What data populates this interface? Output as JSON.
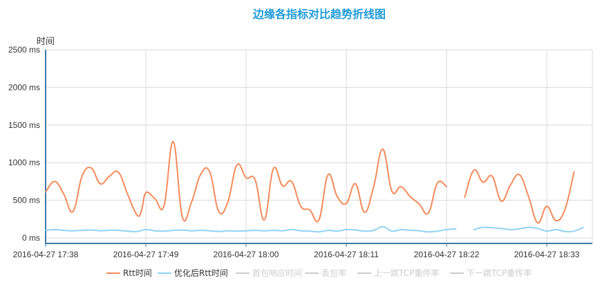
{
  "chart_data": {
    "type": "line",
    "title": "边缘各指标对比趋势折线图",
    "ylabel": "时间",
    "ylim": [
      0,
      2500
    ],
    "y_ticks": [
      {
        "value": 0,
        "label": "0 ms"
      },
      {
        "value": 500,
        "label": "500 ms"
      },
      {
        "value": 1000,
        "label": "1000 ms"
      },
      {
        "value": 1500,
        "label": "1500 ms"
      },
      {
        "value": 2000,
        "label": "2000 ms"
      },
      {
        "value": 2500,
        "label": "2500 ms"
      }
    ],
    "x_range": [
      "2016-04-27 17:38",
      "2016-04-27 18:38"
    ],
    "x_ticks": [
      "2016-04-27 17:38",
      "2016-04-27 17:49",
      "2016-04-27 18:00",
      "2016-04-27 18:11",
      "2016-04-27 18:22",
      "2016-04-27 18:33"
    ],
    "grid": true,
    "legend_position": "bottom-center",
    "colors": {
      "title": "#1e9bd7",
      "axis": "#3a7ca5",
      "grid": "#d9d9d9",
      "rtt": "#f58a5a",
      "optimized": "#8fd3f4",
      "inactive": "#cccccc"
    },
    "legend": [
      {
        "name": "Rtt时间",
        "active": true,
        "color": "#f58a5a"
      },
      {
        "name": "优化后Rtt时间",
        "active": true,
        "color": "#8fd3f4"
      },
      {
        "name": "首包响应时间",
        "active": false,
        "color": "#cccccc"
      },
      {
        "name": "丢包率",
        "active": false,
        "color": "#cccccc"
      },
      {
        "name": "上一跳TCP重传率",
        "active": false,
        "color": "#cccccc"
      },
      {
        "name": "下一跳TCP重传率",
        "active": false,
        "color": "#cccccc"
      }
    ],
    "series": [
      {
        "name": "Rtt时间",
        "x": [
          "17:38:00",
          "17:39:00",
          "17:40:00",
          "17:41:00",
          "17:42:00",
          "17:43:00",
          "17:44:00",
          "17:45:00",
          "17:46:00",
          "17:47:00",
          "17:48:00",
          "17:48:30",
          "17:49:00",
          "17:50:00",
          "17:51:00",
          "17:52:00",
          "17:53:00",
          "17:54:00",
          "17:55:00",
          "17:56:00",
          "17:57:00",
          "17:58:00",
          "17:59:00",
          "18:00:00",
          "18:01:00",
          "18:02:00",
          "18:03:00",
          "18:04:00",
          "18:05:00",
          "18:06:00",
          "18:07:00",
          "18:08:00",
          "18:09:00",
          "18:10:00",
          "18:11:00",
          "18:12:00",
          "18:13:00",
          "18:14:00",
          "18:15:00",
          "18:16:00",
          "18:17:00",
          "18:18:00",
          "18:19:00",
          "18:20:00",
          "18:21:00",
          "18:22:00",
          "18:23:00",
          "18:24:00",
          "18:25:00",
          "18:26:00",
          "18:27:00",
          "18:28:00",
          "18:29:00",
          "18:30:00",
          "18:31:00",
          "18:32:00",
          "18:33:00",
          "18:34:00",
          "18:35:00",
          "18:36:00",
          "18:37:00",
          "18:38:00"
        ],
        "values": [
          610,
          750,
          580,
          350,
          820,
          930,
          720,
          820,
          870,
          580,
          310,
          350,
          600,
          520,
          430,
          1280,
          280,
          470,
          840,
          880,
          350,
          480,
          970,
          800,
          770,
          240,
          920,
          690,
          750,
          420,
          370,
          240,
          840,
          550,
          460,
          720,
          340,
          680,
          1180,
          620,
          680,
          550,
          450,
          330,
          730,
          680,
          null,
          540,
          900,
          740,
          820,
          490,
          700,
          840,
          550,
          200,
          420,
          230,
          380,
          880,
          null,
          null
        ]
      },
      {
        "name": "优化后Rtt时间",
        "x": [
          "17:38:00",
          "17:39:00",
          "17:40:00",
          "17:41:00",
          "17:42:00",
          "17:43:00",
          "17:44:00",
          "17:45:00",
          "17:46:00",
          "17:47:00",
          "17:48:00",
          "17:49:00",
          "17:50:00",
          "17:51:00",
          "17:52:00",
          "17:53:00",
          "17:54:00",
          "17:55:00",
          "17:56:00",
          "17:57:00",
          "17:58:00",
          "17:59:00",
          "18:00:00",
          "18:01:00",
          "18:02:00",
          "18:03:00",
          "18:04:00",
          "18:05:00",
          "18:06:00",
          "18:07:00",
          "18:08:00",
          "18:09:00",
          "18:10:00",
          "18:11:00",
          "18:12:00",
          "18:13:00",
          "18:14:00",
          "18:15:00",
          "18:16:00",
          "18:17:00",
          "18:18:00",
          "18:19:00",
          "18:20:00",
          "18:21:00",
          "18:22:00",
          "18:23:00",
          "18:24:00",
          "18:25:00",
          "18:26:00",
          "18:27:00",
          "18:28:00",
          "18:29:00",
          "18:30:00",
          "18:31:00",
          "18:32:00",
          "18:33:00",
          "18:34:00",
          "18:35:00",
          "18:36:00",
          "18:37:00",
          "18:38:00"
        ],
        "values": [
          100,
          110,
          100,
          95,
          100,
          105,
          95,
          100,
          100,
          90,
          85,
          110,
          95,
          90,
          100,
          105,
          95,
          100,
          95,
          85,
          95,
          90,
          95,
          100,
          95,
          100,
          95,
          110,
          95,
          90,
          80,
          100,
          90,
          110,
          105,
          90,
          100,
          150,
          90,
          110,
          100,
          95,
          80,
          90,
          110,
          120,
          null,
          110,
          140,
          135,
          125,
          110,
          120,
          140,
          125,
          90,
          110,
          85,
          90,
          140,
          null
        ]
      }
    ]
  }
}
